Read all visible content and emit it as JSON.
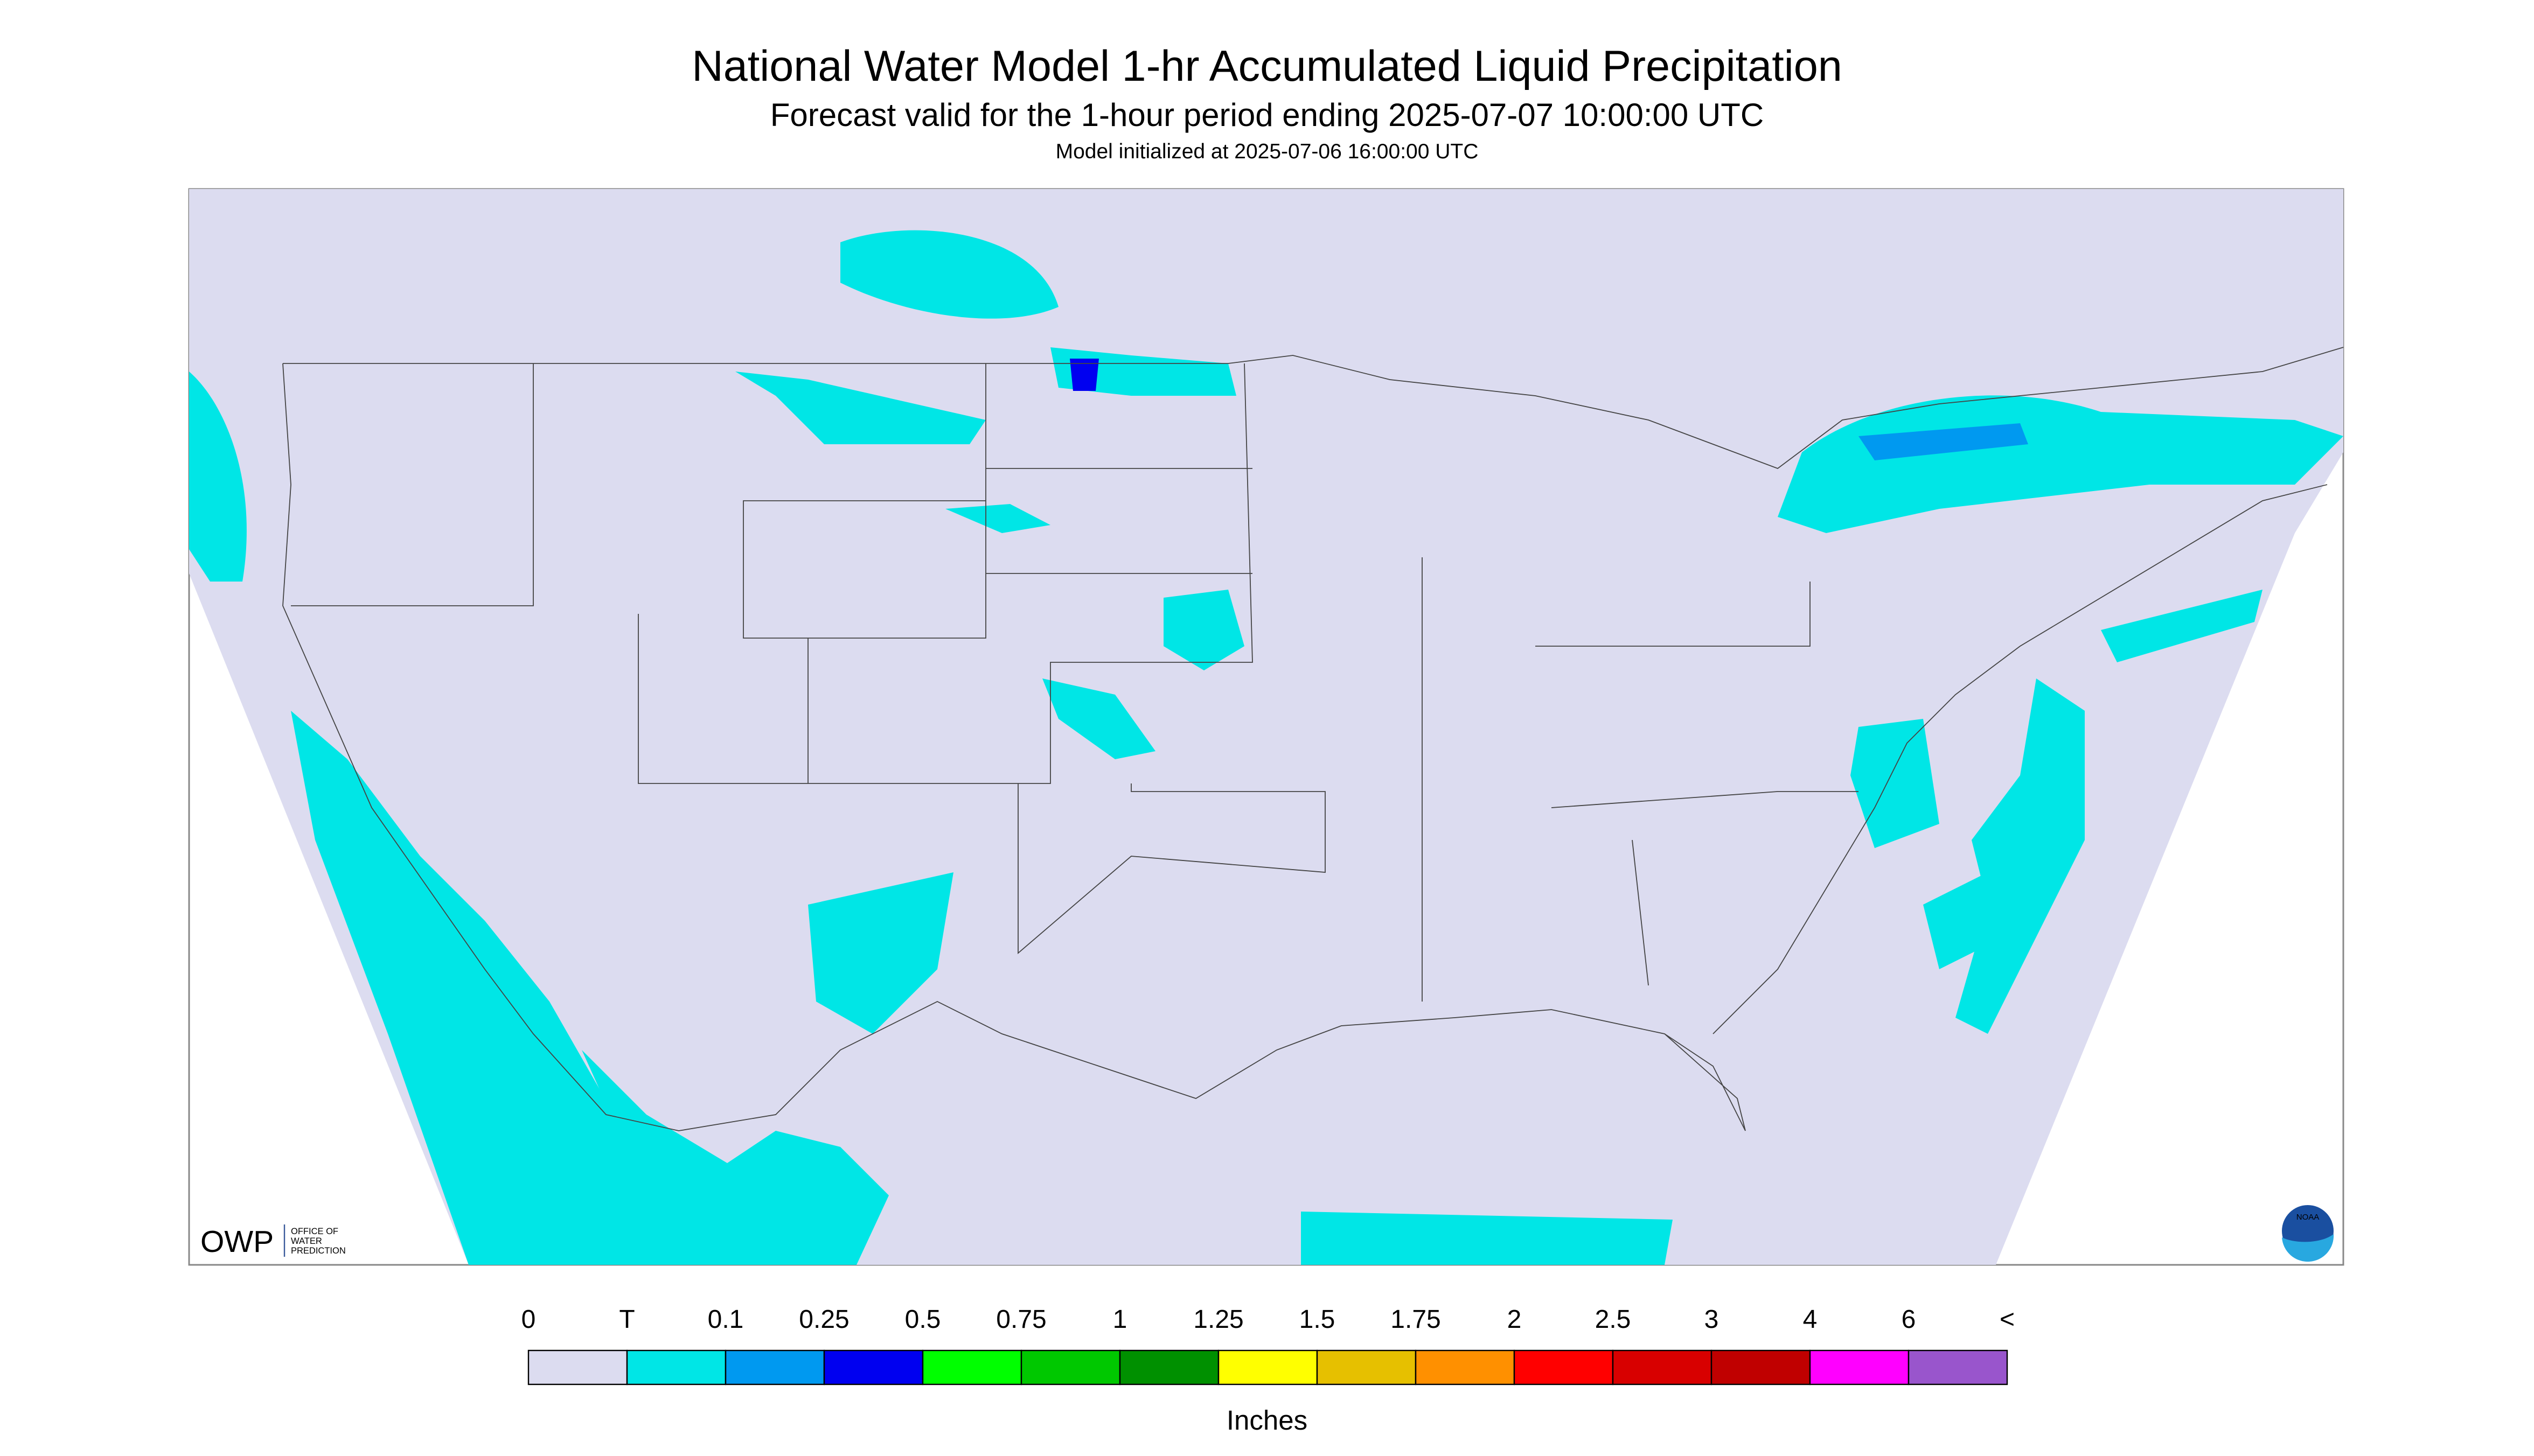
{
  "header": {
    "title": "National Water Model 1-hr Accumulated Liquid Precipitation",
    "subtitle": "Forecast valid for the 1-hour period ending 2025-07-07 10:00:00 UTC",
    "note": "Model initialized at 2025-07-06 16:00:00 UTC"
  },
  "logos": {
    "owp": "OWP",
    "owp_text": [
      "OFFICE OF",
      "WATER",
      "PREDICTION"
    ],
    "noaa": "NOAA"
  },
  "legend": {
    "labels": [
      "0",
      "T",
      "0.1",
      "0.25",
      "0.5",
      "0.75",
      "1",
      "1.25",
      "1.5",
      "1.75",
      "2",
      "2.5",
      "3",
      "4",
      "6",
      "<"
    ],
    "colors": [
      "#dcdcf0",
      "#00e6e6",
      "#0099f0",
      "#0000f0",
      "#00ff00",
      "#00c800",
      "#009000",
      "#ffff00",
      "#e6c000",
      "#ff9000",
      "#ff0000",
      "#d80000",
      "#c00000",
      "#ff00ff",
      "#9955cc"
    ],
    "unit": "Inches"
  }
}
